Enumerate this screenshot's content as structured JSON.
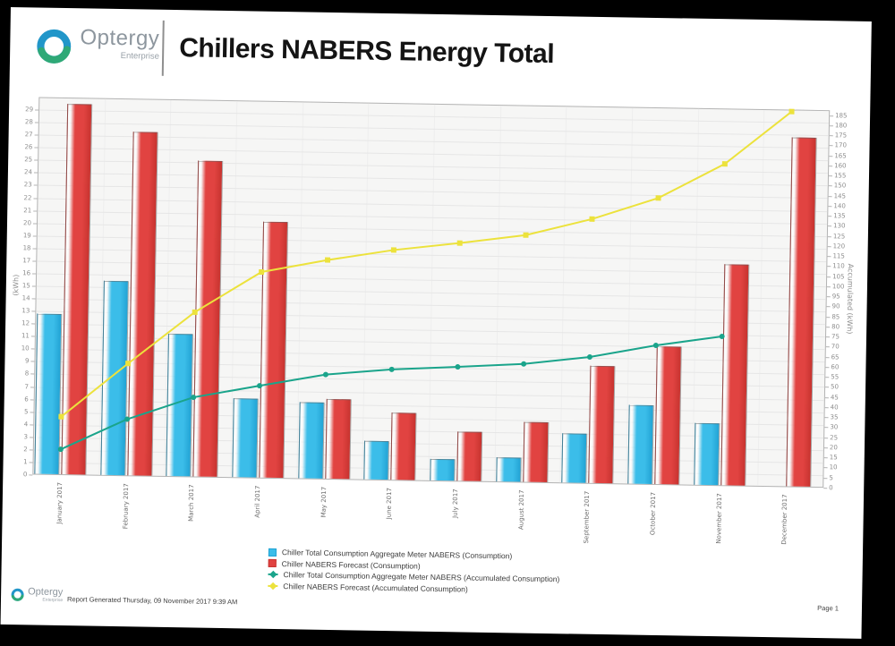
{
  "header": {
    "logo_name": "Optergy",
    "logo_sub": "Enterprise",
    "title": "Chillers NABERS Energy Total"
  },
  "chart_data": {
    "type": "bar+line",
    "title": "Chillers NABERS Energy Total",
    "categories": [
      "January 2017",
      "February 2017",
      "March 2017",
      "April 2017",
      "May 2017",
      "June 2017",
      "July 2017",
      "August 2017",
      "September 2017",
      "October 2017",
      "November 2017",
      "December 2017"
    ],
    "series": [
      {
        "name": "Chiller Total Consumption Aggregate Meter NABERS (Consumption)",
        "type": "bar",
        "axis": "left",
        "color": "#3bbde9",
        "color_dark": "#22a3d4",
        "marker": "square",
        "values": [
          12.8,
          15.5,
          11.4,
          6.3,
          6.1,
          3.1,
          1.8,
          2.0,
          4.0,
          6.3,
          5.0,
          null
        ]
      },
      {
        "name": "Chiller NABERS Forecast (Consumption)",
        "type": "bar",
        "axis": "left",
        "color": "#e14341",
        "color_dark": "#c7332f",
        "marker": "square",
        "values": [
          29.5,
          27.4,
          25.2,
          20.4,
          6.4,
          5.4,
          4.0,
          4.8,
          9.4,
          11.0,
          17.6,
          27.8
        ]
      },
      {
        "name": "Chiller Total Consumption Aggregate Meter NABERS (Accumulated Consumption)",
        "type": "line",
        "axis": "right",
        "color": "#1aa48b",
        "marker": "circle",
        "values": [
          12.8,
          28.3,
          39.7,
          46.0,
          52.1,
          55.2,
          57.0,
          59.0,
          63.0,
          69.3,
          74.3,
          null
        ]
      },
      {
        "name": "Chiller NABERS Forecast (Accumulated Consumption)",
        "type": "line",
        "axis": "right",
        "color": "#ece23c",
        "marker": "square",
        "values": [
          29.0,
          56.0,
          82.0,
          102.5,
          109.0,
          114.5,
          118.5,
          123.0,
          131.5,
          142.5,
          160.0,
          186.5
        ]
      }
    ],
    "left_axis": {
      "label": "(kWh)",
      "min": 0,
      "max": 30,
      "tick_step": 1,
      "last_tick": 29
    },
    "right_axis": {
      "label": "Accumulated (kWh)",
      "min": 0,
      "max": 187.5,
      "tick_step": 5,
      "last_tick": 185
    },
    "legend_position": "bottom",
    "grid": true,
    "colors": {
      "plot_bg": "#f6f6f5",
      "grid_h": "#e6e6e6",
      "grid_v": "#eeeeee",
      "axis_line": "#b3b3b3",
      "tick_text": "#8c8c8c",
      "x_label_text": "#6e6e6e",
      "legend_text": "#3c3c3c"
    }
  },
  "footer": {
    "logo_name": "Optergy",
    "logo_sub": "Enterprise",
    "generated": "Report Generated Thursday, 09 November 2017 9:39 AM",
    "page": "Page 1"
  }
}
